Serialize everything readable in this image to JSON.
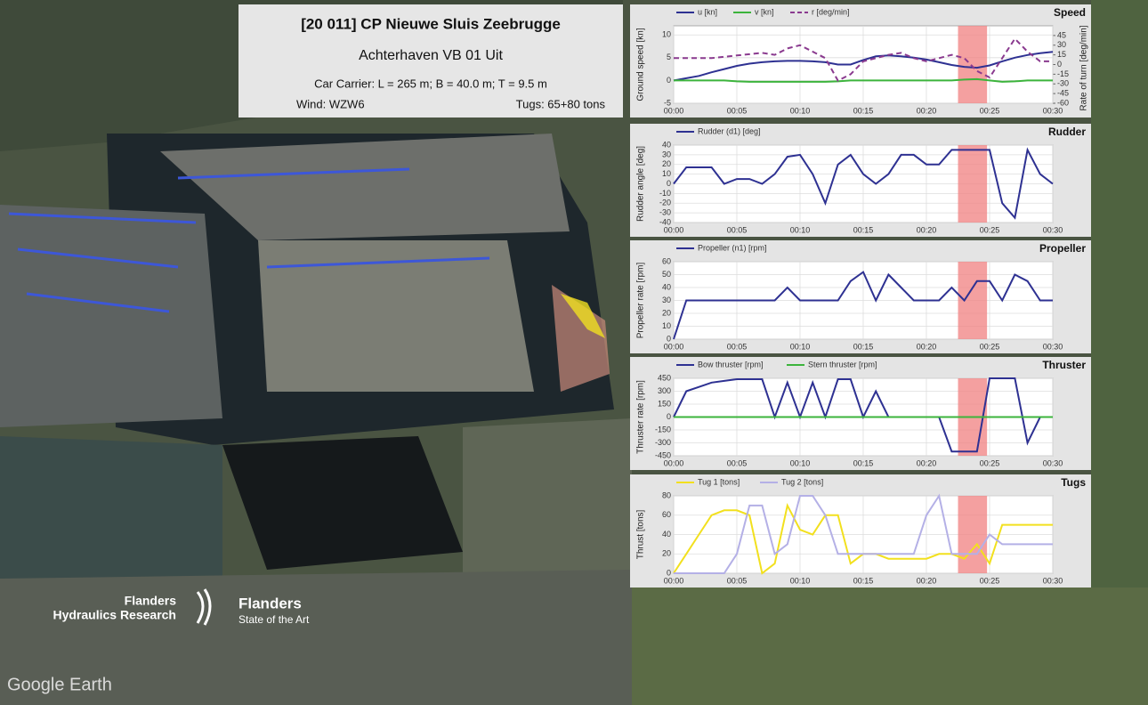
{
  "info": {
    "title": "[20 011] CP Nieuwe Sluis Zeebrugge",
    "subtitle": "Achterhaven VB 01 Uit",
    "vessel": "Car Carrier: L = 265 m; B = 40.0 m; T = 9.5 m",
    "wind": "Wind: WZW6",
    "tugs": "Tugs: 65+80 tons"
  },
  "logos": {
    "fhr_line1": "Flanders",
    "fhr_line2": "Hydraulics Research",
    "flanders": "Flanders",
    "flanders_tagline": "State of the Art",
    "google": "Google Earth"
  },
  "chart_data": [
    {
      "type": "line",
      "title": "Speed",
      "ylabel": "Ground speed [kn]",
      "y2label": "Rate of turn [deg/min]",
      "grid": true,
      "xlim": [
        0,
        30
      ],
      "xticks": [
        {
          "value": 0,
          "label": "00:00"
        },
        {
          "value": 5,
          "label": "00:05"
        },
        {
          "value": 10,
          "label": "00:10"
        },
        {
          "value": 15,
          "label": "00:15"
        },
        {
          "value": 20,
          "label": "00:20"
        },
        {
          "value": 25,
          "label": "00:25"
        },
        {
          "value": 30,
          "label": "00:30"
        }
      ],
      "ylim": [
        -5,
        12
      ],
      "yticks": [
        -5,
        0,
        5,
        10
      ],
      "y2lim": [
        -60,
        60
      ],
      "y2ticks": [
        -60,
        -45,
        -30,
        -15,
        0,
        15,
        30,
        45
      ],
      "highlight": [
        22.5,
        24.8
      ],
      "x": [
        0,
        1,
        2,
        3,
        4,
        5,
        6,
        7,
        8,
        9,
        10,
        11,
        12,
        13,
        14,
        15,
        16,
        17,
        18,
        19,
        20,
        21,
        22,
        23,
        24,
        25,
        26,
        27,
        28,
        29,
        30
      ],
      "series": [
        {
          "name": "u [kn]",
          "color": "#2e3192",
          "values": [
            0,
            0.5,
            1,
            1.8,
            2.5,
            3.2,
            3.7,
            4,
            4.2,
            4.3,
            4.3,
            4.2,
            4,
            3.5,
            3.5,
            4.5,
            5.3,
            5.5,
            5.3,
            5,
            4.6,
            4,
            3.4,
            3,
            2.8,
            3.3,
            4.2,
            5,
            5.6,
            6,
            6.3
          ]
        },
        {
          "name": "v [kn]",
          "color": "#3cb43c",
          "values": [
            0,
            0,
            0,
            0,
            0,
            -0.2,
            -0.3,
            -0.3,
            -0.3,
            -0.3,
            -0.3,
            -0.3,
            -0.3,
            -0.2,
            0,
            0,
            0,
            0,
            0,
            0,
            0,
            0,
            0,
            0.2,
            0.3,
            0,
            -0.3,
            -0.2,
            0,
            0,
            0
          ]
        },
        {
          "name": "r [deg/min]",
          "color": "#8a3a8f",
          "dashed": true,
          "axis": "y2",
          "values": [
            10,
            10,
            10,
            10,
            12,
            14,
            16,
            18,
            15,
            25,
            30,
            20,
            10,
            -25,
            -15,
            5,
            10,
            15,
            18,
            10,
            5,
            10,
            15,
            10,
            -10,
            -20,
            10,
            40,
            20,
            5,
            5
          ]
        }
      ]
    },
    {
      "type": "line",
      "title": "Rudder",
      "ylabel": "Rudder angle [deg]",
      "grid": true,
      "xlim": [
        0,
        30
      ],
      "xticks": [
        {
          "value": 0,
          "label": "00:00"
        },
        {
          "value": 5,
          "label": "00:05"
        },
        {
          "value": 10,
          "label": "00:10"
        },
        {
          "value": 15,
          "label": "00:15"
        },
        {
          "value": 20,
          "label": "00:20"
        },
        {
          "value": 25,
          "label": "00:25"
        },
        {
          "value": 30,
          "label": "00:30"
        }
      ],
      "ylim": [
        -40,
        40
      ],
      "yticks": [
        -40,
        -30,
        -20,
        -10,
        0,
        10,
        20,
        30,
        40
      ],
      "highlight": [
        22.5,
        24.8
      ],
      "x": [
        0,
        1,
        2,
        3,
        4,
        5,
        6,
        7,
        8,
        9,
        10,
        11,
        12,
        13,
        14,
        15,
        16,
        17,
        18,
        19,
        20,
        21,
        22,
        23,
        24,
        25,
        26,
        27,
        28,
        29,
        30
      ],
      "series": [
        {
          "name": "Rudder (d1) [deg]",
          "color": "#2e3192",
          "values": [
            0,
            17,
            17,
            17,
            0,
            5,
            5,
            0,
            10,
            28,
            30,
            10,
            -20,
            20,
            30,
            10,
            0,
            10,
            30,
            30,
            20,
            20,
            35,
            35,
            35,
            35,
            -20,
            -35,
            35,
            10,
            0
          ]
        }
      ]
    },
    {
      "type": "line",
      "title": "Propeller",
      "ylabel": "Propeller rate [rpm]",
      "grid": true,
      "xlim": [
        0,
        30
      ],
      "xticks": [
        {
          "value": 0,
          "label": "00:00"
        },
        {
          "value": 5,
          "label": "00:05"
        },
        {
          "value": 10,
          "label": "00:10"
        },
        {
          "value": 15,
          "label": "00:15"
        },
        {
          "value": 20,
          "label": "00:20"
        },
        {
          "value": 25,
          "label": "00:25"
        },
        {
          "value": 30,
          "label": "00:30"
        }
      ],
      "ylim": [
        0,
        60
      ],
      "yticks": [
        0,
        10,
        20,
        30,
        40,
        50,
        60
      ],
      "highlight": [
        22.5,
        24.8
      ],
      "x": [
        0,
        1,
        2,
        3,
        4,
        5,
        6,
        7,
        8,
        9,
        10,
        11,
        12,
        13,
        14,
        15,
        16,
        17,
        18,
        19,
        20,
        21,
        22,
        23,
        24,
        25,
        26,
        27,
        28,
        29,
        30
      ],
      "series": [
        {
          "name": "Propeller (n1) [rpm]",
          "color": "#2e3192",
          "values": [
            0,
            30,
            30,
            30,
            30,
            30,
            30,
            30,
            30,
            40,
            30,
            30,
            30,
            30,
            45,
            52,
            30,
            50,
            40,
            30,
            30,
            30,
            40,
            30,
            45,
            45,
            30,
            50,
            45,
            30,
            30
          ]
        }
      ]
    },
    {
      "type": "line",
      "title": "Thruster",
      "ylabel": "Thruster rate [rpm]",
      "grid": true,
      "xlim": [
        0,
        30
      ],
      "xticks": [
        {
          "value": 0,
          "label": "00:00"
        },
        {
          "value": 5,
          "label": "00:05"
        },
        {
          "value": 10,
          "label": "00:10"
        },
        {
          "value": 15,
          "label": "00:15"
        },
        {
          "value": 20,
          "label": "00:20"
        },
        {
          "value": 25,
          "label": "00:25"
        },
        {
          "value": 30,
          "label": "00:30"
        }
      ],
      "ylim": [
        -450,
        450
      ],
      "yticks": [
        -450,
        -300,
        -150,
        0,
        150,
        300,
        450
      ],
      "highlight": [
        22.5,
        24.8
      ],
      "x": [
        0,
        1,
        2,
        3,
        4,
        5,
        6,
        7,
        8,
        9,
        10,
        11,
        12,
        13,
        14,
        15,
        16,
        17,
        18,
        19,
        20,
        21,
        22,
        23,
        24,
        25,
        26,
        27,
        28,
        29,
        30
      ],
      "series": [
        {
          "name": "Bow thruster [rpm]",
          "color": "#2e3192",
          "values": [
            0,
            300,
            350,
            400,
            420,
            440,
            440,
            440,
            0,
            400,
            0,
            400,
            0,
            440,
            440,
            0,
            300,
            0,
            0,
            0,
            0,
            0,
            -400,
            -400,
            -400,
            450,
            450,
            450,
            -300,
            0,
            0
          ]
        },
        {
          "name": "Stern thruster [rpm]",
          "color": "#3cb43c",
          "values": [
            0,
            0,
            0,
            0,
            0,
            0,
            0,
            0,
            0,
            0,
            0,
            0,
            0,
            0,
            0,
            0,
            0,
            0,
            0,
            0,
            0,
            0,
            0,
            0,
            0,
            0,
            0,
            0,
            0,
            0,
            0
          ]
        }
      ]
    },
    {
      "type": "line",
      "title": "Tugs",
      "ylabel": "Thrust [tons]",
      "grid": true,
      "xlim": [
        0,
        30
      ],
      "xticks": [
        {
          "value": 0,
          "label": "00:00"
        },
        {
          "value": 5,
          "label": "00:05"
        },
        {
          "value": 10,
          "label": "00:10"
        },
        {
          "value": 15,
          "label": "00:15"
        },
        {
          "value": 20,
          "label": "00:20"
        },
        {
          "value": 25,
          "label": "00:25"
        },
        {
          "value": 30,
          "label": "00:30"
        }
      ],
      "ylim": [
        0,
        80
      ],
      "yticks": [
        0,
        20,
        40,
        60,
        80
      ],
      "highlight": [
        22.5,
        24.8
      ],
      "x": [
        0,
        1,
        2,
        3,
        4,
        5,
        6,
        7,
        8,
        9,
        10,
        11,
        12,
        13,
        14,
        15,
        16,
        17,
        18,
        19,
        20,
        21,
        22,
        23,
        24,
        25,
        26,
        27,
        28,
        29,
        30
      ],
      "series": [
        {
          "name": "Tug 1 [tons]",
          "color": "#f2e01e",
          "values": [
            0,
            20,
            40,
            60,
            65,
            65,
            60,
            0,
            10,
            70,
            45,
            40,
            60,
            60,
            10,
            20,
            20,
            15,
            15,
            15,
            15,
            20,
            20,
            15,
            30,
            10,
            50,
            50,
            50,
            50,
            50
          ]
        },
        {
          "name": "Tug 2 [tons]",
          "color": "#b4b0e6",
          "values": [
            0,
            0,
            0,
            0,
            0,
            20,
            70,
            70,
            20,
            30,
            80,
            80,
            60,
            20,
            20,
            20,
            20,
            20,
            20,
            20,
            60,
            80,
            20,
            20,
            20,
            40,
            30,
            30,
            30,
            30,
            30
          ]
        }
      ]
    }
  ]
}
